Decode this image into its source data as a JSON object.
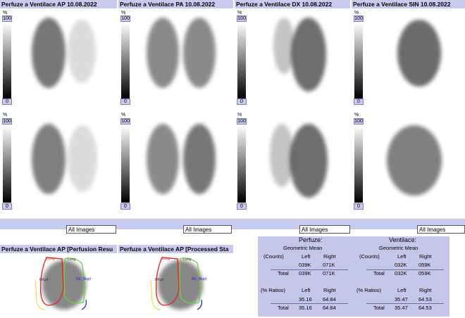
{
  "panels": [
    {
      "title": "Perfuze a Ventilace AP 10.08.2022",
      "scale_pct": "%",
      "scale_max": "100",
      "scale_min": "0"
    },
    {
      "title": "Perfuze a Ventilace PA 10.08.2022",
      "scale_pct": "%",
      "scale_max": "100",
      "scale_min": "0"
    },
    {
      "title": "Perfuze a Ventilace DX 10.08.2022",
      "scale_pct": "%",
      "scale_max": "100",
      "scale_min": "0"
    },
    {
      "title": "Perfuze a Ventilace SIN 10.08.2022",
      "scale_pct": "%",
      "scale_max": "100",
      "scale_min": "0"
    },
    {
      "title": "",
      "scale_pct": "%",
      "scale_max": "100",
      "scale_min": "0"
    },
    {
      "title": "",
      "scale_pct": "%",
      "scale_max": "100",
      "scale_min": "0"
    },
    {
      "title": "",
      "scale_pct": "%",
      "scale_max": "100",
      "scale_min": "0"
    },
    {
      "title": "",
      "scale_pct": "%",
      "scale_max": "100",
      "scale_min": "0"
    }
  ],
  "selectors": [
    "All Images",
    "All Images",
    "All Images",
    "All Images"
  ],
  "roi_panels": [
    {
      "title": "Perfuze a Ventilace AP [Perfusion Resu",
      "labels": [
        "Lung",
        "Lung",
        "BKgd",
        "RE_Bkgd"
      ]
    },
    {
      "title": "Perfuze a Ventilace AP [Processed Sta",
      "labels": [
        "Lung",
        "Lung",
        "BKgd",
        "RE_Bkgd"
      ]
    }
  ],
  "results": {
    "perfuze": {
      "title": "Perfuze:",
      "geo_mean": "Geometric Mean",
      "col_left": "Left",
      "col_right": "Right",
      "counts_label": "(Counts)",
      "counts_left": "039K",
      "counts_right": "071K",
      "total_label": "Total",
      "total_left": "039K",
      "total_right": "071K",
      "ratio_label": "(% Ratios)",
      "ratio_left": "35.16",
      "ratio_right": "64.84",
      "ratio_total_label": "Total",
      "ratio_total_left": "35.16",
      "ratio_total_right": "64.84"
    },
    "ventilace": {
      "title": "Ventilace:",
      "geo_mean": "Geometric Mean",
      "col_left": "Left",
      "col_right": "Right",
      "counts_label": "(Counts)",
      "counts_left": "032K",
      "counts_right": "059K",
      "total_label": "Total",
      "total_left": "032K",
      "total_right": "059K",
      "ratio_label": "(% Ratios)",
      "ratio_left": "35.47",
      "ratio_right": "64.53",
      "ratio_total_label": "Total",
      "ratio_total_left": "35.47",
      "ratio_total_right": "64.53"
    }
  },
  "colors": {
    "header_bg": "#c9cbee",
    "table_bg": "#c4c6ea",
    "roi_red": "#e0221c",
    "roi_green": "#6bcf4a",
    "roi_yellow": "#f0e050",
    "roi_blue": "#2a2ad8"
  }
}
